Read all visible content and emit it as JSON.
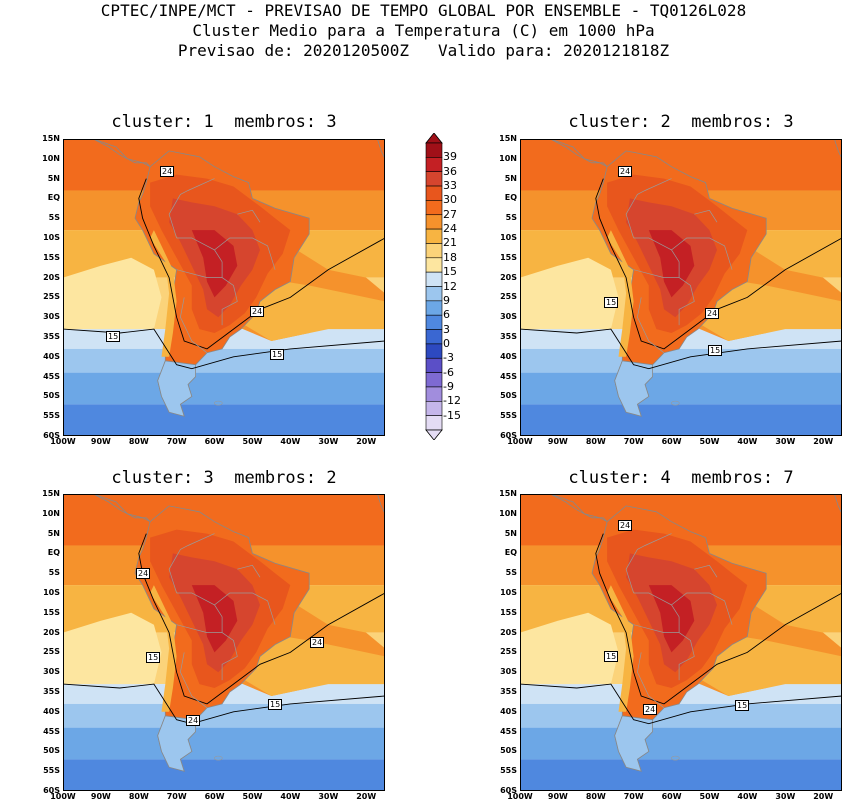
{
  "header": {
    "line1": "CPTEC/INPE/MCT - PREVISAO DE TEMPO GLOBAL POR ENSEMBLE - TQ0126L028",
    "line2": "Cluster Medio para a Temperatura (C) em 1000 hPa",
    "line3": "Previsao de: 2020120500Z   Valido para: 2020121818Z"
  },
  "panels": [
    {
      "title": "cluster: 1  membros: 3",
      "contour_labels": [
        "24",
        "24",
        "15",
        "15"
      ]
    },
    {
      "title": "cluster: 2  membros: 3",
      "contour_labels": [
        "24",
        "24",
        "15",
        "15"
      ]
    },
    {
      "title": "cluster: 3  membros: 2",
      "contour_labels": [
        "24",
        "24",
        "15",
        "24",
        "15"
      ]
    },
    {
      "title": "cluster: 4  membros: 7",
      "contour_labels": [
        "24",
        "24",
        "15",
        "15"
      ]
    }
  ],
  "y_ticks": [
    "15N",
    "10N",
    "5N",
    "EQ",
    "5S",
    "10S",
    "15S",
    "20S",
    "25S",
    "30S",
    "35S",
    "40S",
    "45S",
    "50S",
    "55S",
    "60S"
  ],
  "x_ticks": [
    "100W",
    "90W",
    "80W",
    "70W",
    "60W",
    "50W",
    "40W",
    "30W",
    "20W"
  ],
  "colorbar": {
    "labels": [
      "39",
      "36",
      "33",
      "30",
      "27",
      "24",
      "21",
      "18",
      "15",
      "12",
      "9",
      "6",
      "3",
      "0",
      "-3",
      "-6",
      "-9",
      "-12",
      "-15"
    ],
    "colors": [
      "#a01018",
      "#c42024",
      "#d6452e",
      "#e8561d",
      "#f26b1d",
      "#f5922c",
      "#f7b442",
      "#fbd37a",
      "#fde6a0",
      "#cfe3f5",
      "#9cc6ee",
      "#6ca7e6",
      "#4f88df",
      "#3a67d2",
      "#2d49c0",
      "#5b4fc7",
      "#7e6ad2",
      "#a18ddd",
      "#c5b6ea",
      "#e4dcf4"
    ],
    "unit_note": ""
  },
  "chart_data": {
    "type": "heatmap",
    "variable": "Temperatura (C) em 1000 hPa",
    "lon_range": [
      "100W",
      "15W"
    ],
    "lat_range": [
      "60S",
      "15N"
    ],
    "levels": [
      -15,
      -12,
      -9,
      -6,
      -3,
      0,
      3,
      6,
      9,
      12,
      15,
      18,
      21,
      24,
      27,
      30,
      33,
      36,
      39
    ]
  }
}
